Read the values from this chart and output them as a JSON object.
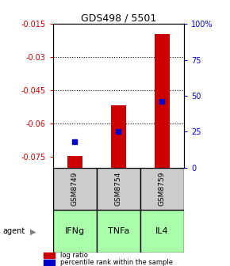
{
  "title": "GDS498 / 5501",
  "samples": [
    "GSM8749",
    "GSM8754",
    "GSM8759"
  ],
  "agents": [
    "IFNg",
    "TNFa",
    "IL4"
  ],
  "log_ratios": [
    -0.0748,
    -0.0518,
    -0.0195
  ],
  "percentile_ranks": [
    0.18,
    0.25,
    0.46
  ],
  "ylim_left": [
    -0.08,
    -0.015
  ],
  "ylim_right": [
    0,
    1.0
  ],
  "yticks_left": [
    -0.075,
    -0.06,
    -0.045,
    -0.03,
    -0.015
  ],
  "yticks_right": [
    0,
    0.25,
    0.5,
    0.75,
    1.0
  ],
  "ytick_labels_right": [
    "0",
    "25",
    "50",
    "75",
    "100%"
  ],
  "ytick_labels_left": [
    "-0.075",
    "-0.06",
    "-0.045",
    "-0.03",
    "-0.015"
  ],
  "gridlines": [
    -0.03,
    -0.045,
    -0.06
  ],
  "bar_color": "#cc0000",
  "dot_color": "#0000cc",
  "sample_box_color": "#cccccc",
  "agent_box_color": "#aaffaa",
  "left_label_color": "#cc0000",
  "right_label_color": "#0000cc",
  "bar_width": 0.35
}
